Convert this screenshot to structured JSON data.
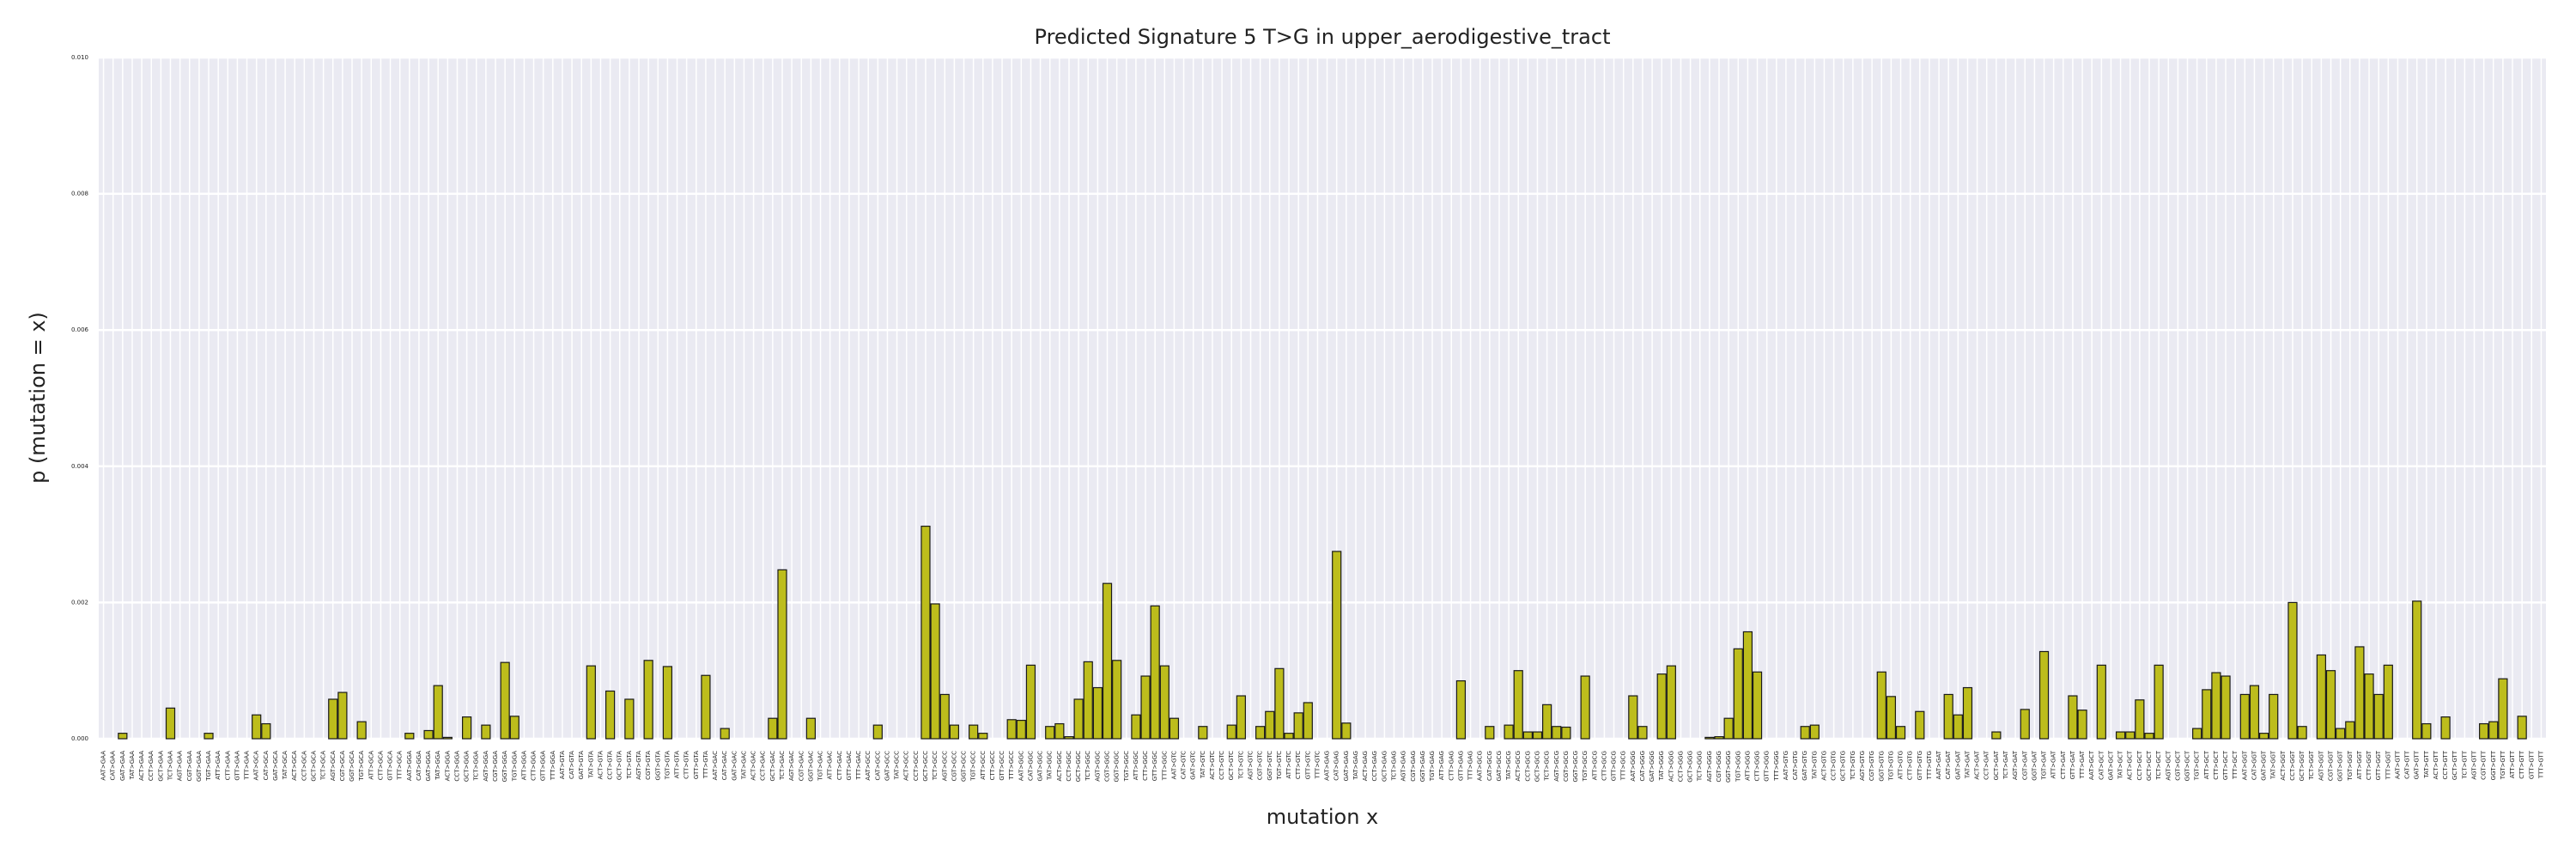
{
  "chart_data": {
    "type": "bar",
    "title": "Predicted Signature 5 T>G in upper_aerodigestive_tract",
    "x_label": "mutation x",
    "y_label": "p (mutation = x)",
    "color": "#bdbd1c",
    "edge_color": "#1a1a1a",
    "grid": true,
    "ylim": [
      0,
      0.01
    ],
    "yticks": [
      {
        "value": 0,
        "label": "0.000"
      },
      {
        "value": 0.002,
        "label": "0.002"
      },
      {
        "value": 0.004,
        "label": "0.004"
      },
      {
        "value": 0.006,
        "label": "0.006"
      },
      {
        "value": 0.008,
        "label": "0.008"
      },
      {
        "value": 0.01,
        "label": "0.010"
      }
    ],
    "categories": [
      "AAT>GAA",
      "CAT>GAA",
      "GAT>GAA",
      "TAT>GAA",
      "ACT>GAA",
      "CCT>GAA",
      "GCT>GAA",
      "TCT>GAA",
      "AGT>GAA",
      "CGT>GAA",
      "GGT>GAA",
      "TGT>GAA",
      "ATT>GAA",
      "CTT>GAA",
      "GTT>GAA",
      "TTT>GAA",
      "AAT>GCA",
      "CAT>GCA",
      "GAT>GCA",
      "TAT>GCA",
      "ACT>GCA",
      "CCT>GCA",
      "GCT>GCA",
      "TCT>GCA",
      "AGT>GCA",
      "CGT>GCA",
      "GGT>GCA",
      "TGT>GCA",
      "ATT>GCA",
      "CTT>GCA",
      "GTT>GCA",
      "TTT>GCA",
      "AAT>GGA",
      "CAT>GGA",
      "GAT>GGA",
      "TAT>GGA",
      "ACT>GGA",
      "CCT>GGA",
      "GCT>GGA",
      "TCT>GGA",
      "AGT>GGA",
      "CGT>GGA",
      "GGT>GGA",
      "TGT>GGA",
      "ATT>GGA",
      "CTT>GGA",
      "GTT>GGA",
      "TTT>GGA",
      "AAT>GTA",
      "CAT>GTA",
      "GAT>GTA",
      "TAT>GTA",
      "ACT>GTA",
      "CCT>GTA",
      "GCT>GTA",
      "TCT>GTA",
      "AGT>GTA",
      "CGT>GTA",
      "GGT>GTA",
      "TGT>GTA",
      "ATT>GTA",
      "CTT>GTA",
      "GTT>GTA",
      "TTT>GTA",
      "AAT>GAC",
      "CAT>GAC",
      "GAT>GAC",
      "TAT>GAC",
      "ACT>GAC",
      "CCT>GAC",
      "GCT>GAC",
      "TCT>GAC",
      "AGT>GAC",
      "CGT>GAC",
      "GGT>GAC",
      "TGT>GAC",
      "ATT>GAC",
      "CTT>GAC",
      "GTT>GAC",
      "TTT>GAC",
      "AAT>GCC",
      "CAT>GCC",
      "GAT>GCC",
      "TAT>GCC",
      "ACT>GCC",
      "CCT>GCC",
      "GCT>GCC",
      "TCT>GCC",
      "AGT>GCC",
      "CGT>GCC",
      "GGT>GCC",
      "TGT>GCC",
      "ATT>GCC",
      "CTT>GCC",
      "GTT>GCC",
      "TTT>GCC",
      "AAT>GGC",
      "CAT>GGC",
      "GAT>GGC",
      "TAT>GGC",
      "ACT>GGC",
      "CCT>GGC",
      "GCT>GGC",
      "TCT>GGC",
      "AGT>GGC",
      "CGT>GGC",
      "GGT>GGC",
      "TGT>GGC",
      "ATT>GGC",
      "CTT>GGC",
      "GTT>GGC",
      "TTT>GGC",
      "AAT>GTC",
      "CAT>GTC",
      "GAT>GTC",
      "TAT>GTC",
      "ACT>GTC",
      "CCT>GTC",
      "GCT>GTC",
      "TCT>GTC",
      "AGT>GTC",
      "CGT>GTC",
      "GGT>GTC",
      "TGT>GTC",
      "ATT>GTC",
      "CTT>GTC",
      "GTT>GTC",
      "TTT>GTC",
      "AAT>GAG",
      "CAT>GAG",
      "GAT>GAG",
      "TAT>GAG",
      "ACT>GAG",
      "CCT>GAG",
      "GCT>GAG",
      "TCT>GAG",
      "AGT>GAG",
      "CGT>GAG",
      "GGT>GAG",
      "TGT>GAG",
      "ATT>GAG",
      "CTT>GAG",
      "GTT>GAG",
      "TTT>GAG",
      "AAT>GCG",
      "CAT>GCG",
      "GAT>GCG",
      "TAT>GCG",
      "ACT>GCG",
      "CCT>GCG",
      "GCT>GCG",
      "TCT>GCG",
      "AGT>GCG",
      "CGT>GCG",
      "GGT>GCG",
      "TGT>GCG",
      "ATT>GCG",
      "CTT>GCG",
      "GTT>GCG",
      "TTT>GCG",
      "AAT>GGG",
      "CAT>GGG",
      "GAT>GGG",
      "TAT>GGG",
      "ACT>GGG",
      "CCT>GGG",
      "GCT>GGG",
      "TCT>GGG",
      "AGT>GGG",
      "CGT>GGG",
      "GGT>GGG",
      "TGT>GGG",
      "ATT>GGG",
      "CTT>GGG",
      "GTT>GGG",
      "TTT>GGG",
      "AAT>GTG",
      "CAT>GTG",
      "GAT>GTG",
      "TAT>GTG",
      "ACT>GTG",
      "CCT>GTG",
      "GCT>GTG",
      "TCT>GTG",
      "AGT>GTG",
      "CGT>GTG",
      "GGT>GTG",
      "TGT>GTG",
      "ATT>GTG",
      "CTT>GTG",
      "GTT>GTG",
      "TTT>GTG",
      "AAT>GAT",
      "CAT>GAT",
      "GAT>GAT",
      "TAT>GAT",
      "ACT>GAT",
      "CCT>GAT",
      "GCT>GAT",
      "TCT>GAT",
      "AGT>GAT",
      "CGT>GAT",
      "GGT>GAT",
      "TGT>GAT",
      "ATT>GAT",
      "CTT>GAT",
      "GTT>GAT",
      "TTT>GAT",
      "AAT>GCT",
      "CAT>GCT",
      "GAT>GCT",
      "TAT>GCT",
      "ACT>GCT",
      "CCT>GCT",
      "GCT>GCT",
      "TCT>GCT",
      "AGT>GCT",
      "CGT>GCT",
      "GGT>GCT",
      "TGT>GCT",
      "ATT>GCT",
      "CTT>GCT",
      "GTT>GCT",
      "TTT>GCT",
      "AAT>GGT",
      "CAT>GGT",
      "GAT>GGT",
      "TAT>GGT",
      "ACT>GGT",
      "CCT>GGT",
      "GCT>GGT",
      "TCT>GGT",
      "AGT>GGT",
      "CGT>GGT",
      "GGT>GGT",
      "TGT>GGT",
      "ATT>GGT",
      "CTT>GGT",
      "GTT>GGT",
      "TTT>GGT",
      "AAT>GTT",
      "CAT>GTT",
      "GAT>GTT",
      "TAT>GTT",
      "ACT>GTT",
      "CCT>GTT",
      "GCT>GTT",
      "TCT>GTT",
      "AGT>GTT",
      "CGT>GTT",
      "GGT>GTT",
      "TGT>GTT",
      "ATT>GTT",
      "CTT>GTT",
      "GTT>GTT",
      "TTT>GTT"
    ],
    "values": [
      0,
      0,
      8e-05,
      0,
      0,
      0,
      0,
      0.00045,
      0,
      0,
      0,
      8e-05,
      0,
      0,
      0,
      0,
      0.00035,
      0.00022,
      0,
      0,
      0,
      0,
      0,
      0,
      0.00058,
      0.00068,
      0,
      0.00025,
      0,
      0,
      0,
      0,
      8e-05,
      0,
      0.00012,
      0.00078,
      2e-05,
      0,
      0.00032,
      0,
      0.0002,
      0,
      0.00112,
      0.00033,
      0,
      0,
      0,
      0,
      0,
      0,
      0,
      0.00107,
      0,
      0.0007,
      0,
      0.00058,
      0,
      0.00115,
      0,
      0.00106,
      0,
      0,
      0,
      0.00093,
      0,
      0.00015,
      0,
      0,
      0,
      0,
      0.0003,
      0.00248,
      0,
      0,
      0.0003,
      0,
      0,
      0,
      0,
      0,
      0,
      0.0002,
      0,
      0,
      0,
      0,
      0.00312,
      0.00198,
      0.00065,
      0.0002,
      0,
      0.0002,
      8e-05,
      0,
      0,
      0.00028,
      0.00027,
      0.00108,
      0,
      0.00018,
      0.00022,
      3e-05,
      0.00058,
      0.00113,
      0.00075,
      0.00228,
      0.00115,
      0,
      0.00035,
      0.00092,
      0.00195,
      0.00107,
      0.0003,
      0,
      0,
      0.00018,
      0,
      0,
      0.0002,
      0.00063,
      0,
      0.00018,
      0.0004,
      0.00103,
      8e-05,
      0.00038,
      0.00053,
      0,
      0,
      0.00275,
      0.00023,
      0,
      0,
      0,
      0,
      0,
      0,
      0,
      0,
      0,
      0,
      0,
      0.00085,
      0,
      0,
      0.00018,
      0,
      0.0002,
      0.001,
      0.0001,
      0.0001,
      0.0005,
      0.00018,
      0.00017,
      0,
      0.00092,
      0,
      0,
      0,
      0,
      0.00063,
      0.00018,
      0,
      0.00095,
      0.00107,
      0,
      0,
      0,
      2e-05,
      3e-05,
      0.0003,
      0.00132,
      0.00157,
      0.00098,
      0,
      0,
      0,
      0,
      0.00018,
      0.0002,
      0,
      0,
      0,
      0,
      0,
      0,
      0.00098,
      0.00062,
      0.00018,
      0,
      0.0004,
      0,
      0,
      0.00065,
      0.00035,
      0.00075,
      0,
      0,
      0.0001,
      0,
      0,
      0.00043,
      0,
      0.00128,
      0,
      0,
      0.00063,
      0.00042,
      0,
      0.00108,
      0,
      0.0001,
      0.0001,
      0.00057,
      8e-05,
      0.00108,
      0,
      0,
      0,
      0.00015,
      0.00072,
      0.00097,
      0.00092,
      0,
      0.00065,
      0.00078,
      8e-05,
      0.00065,
      0,
      0.002,
      0.00018,
      0,
      0.00123,
      0.001,
      0.00015,
      0.00025,
      0.00135,
      0.00095,
      0.00065,
      0.00108,
      0,
      0,
      0.00202,
      0.00022,
      0,
      0.00032,
      0,
      0,
      0,
      0.00022,
      0.00025,
      0.00088,
      0,
      0.00033,
      0,
      0
    ]
  }
}
